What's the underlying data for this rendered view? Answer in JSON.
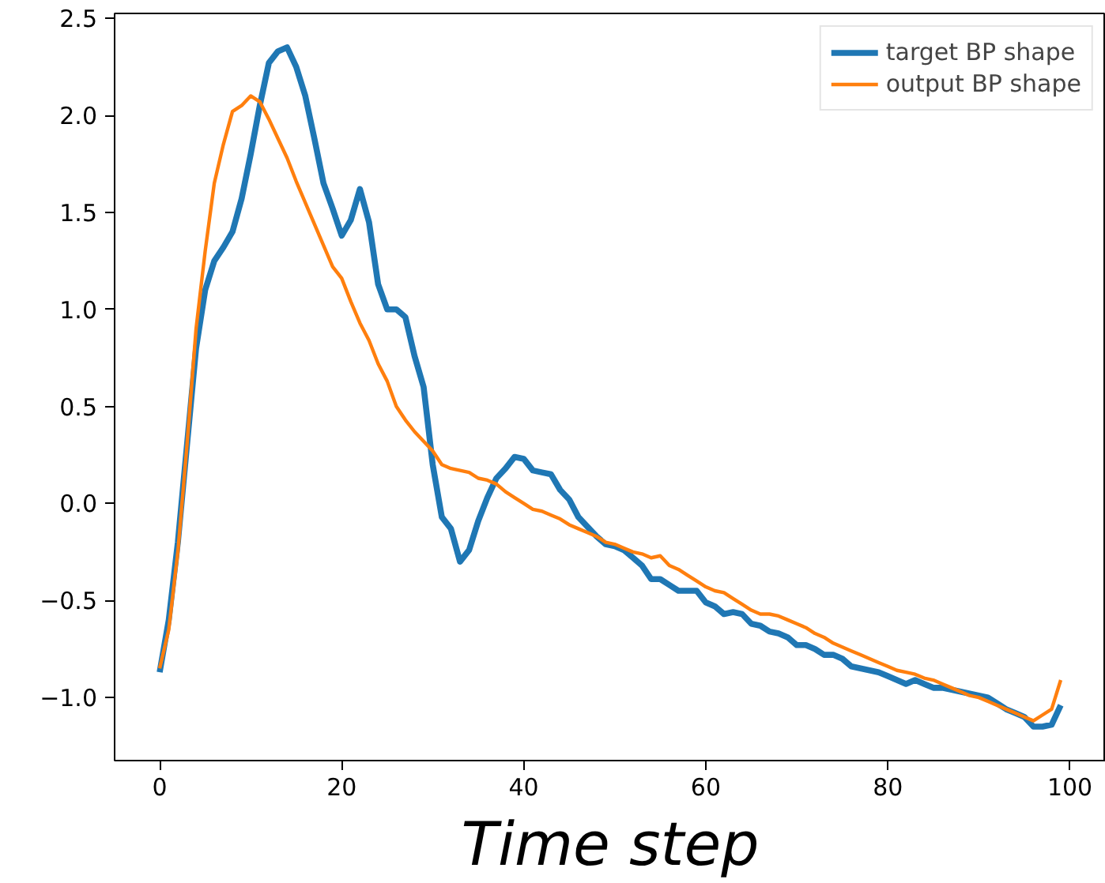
{
  "chart_data": {
    "type": "line",
    "xlabel": "Time step",
    "x": [
      0,
      1,
      2,
      3,
      4,
      5,
      6,
      7,
      8,
      9,
      10,
      11,
      12,
      13,
      14,
      15,
      16,
      17,
      18,
      19,
      20,
      21,
      22,
      23,
      24,
      25,
      26,
      27,
      28,
      29,
      30,
      31,
      32,
      33,
      34,
      35,
      36,
      37,
      38,
      39,
      40,
      41,
      42,
      43,
      44,
      45,
      46,
      47,
      48,
      49,
      50,
      51,
      52,
      53,
      54,
      55,
      56,
      57,
      58,
      59,
      60,
      61,
      62,
      63,
      64,
      65,
      66,
      67,
      68,
      69,
      70,
      71,
      72,
      73,
      74,
      75,
      76,
      77,
      78,
      79,
      80,
      81,
      82,
      83,
      84,
      85,
      86,
      87,
      88,
      89,
      90,
      91,
      92,
      93,
      94,
      95,
      96,
      97,
      98,
      99
    ],
    "series": [
      {
        "name": "target BP shape",
        "color": "#1f77b4",
        "values": [
          -0.87,
          -0.6,
          -0.2,
          0.3,
          0.8,
          1.1,
          1.25,
          1.32,
          1.4,
          1.57,
          1.8,
          2.05,
          2.27,
          2.33,
          2.35,
          2.25,
          2.1,
          1.88,
          1.65,
          1.52,
          1.38,
          1.46,
          1.62,
          1.45,
          1.13,
          1.0,
          1.0,
          0.96,
          0.76,
          0.6,
          0.2,
          -0.07,
          -0.13,
          -0.3,
          -0.24,
          -0.09,
          0.03,
          0.13,
          0.18,
          0.24,
          0.23,
          0.17,
          0.16,
          0.15,
          0.07,
          0.02,
          -0.07,
          -0.12,
          -0.17,
          -0.21,
          -0.22,
          -0.24,
          -0.28,
          -0.32,
          -0.39,
          -0.39,
          -0.42,
          -0.45,
          -0.45,
          -0.45,
          -0.51,
          -0.53,
          -0.57,
          -0.56,
          -0.57,
          -0.62,
          -0.63,
          -0.66,
          -0.67,
          -0.69,
          -0.73,
          -0.73,
          -0.75,
          -0.78,
          -0.78,
          -0.8,
          -0.84,
          -0.85,
          -0.86,
          -0.87,
          -0.89,
          -0.91,
          -0.93,
          -0.91,
          -0.93,
          -0.95,
          -0.95,
          -0.96,
          -0.97,
          -0.98,
          -0.99,
          -1.0,
          -1.03,
          -1.06,
          -1.08,
          -1.1,
          -1.15,
          -1.15,
          -1.14,
          -1.04
        ]
      },
      {
        "name": "output BP shape",
        "color": "#ff7f0e",
        "values": [
          -0.85,
          -0.65,
          -0.25,
          0.3,
          0.9,
          1.3,
          1.65,
          1.85,
          2.02,
          2.05,
          2.1,
          2.07,
          1.98,
          1.88,
          1.78,
          1.66,
          1.55,
          1.44,
          1.33,
          1.22,
          1.16,
          1.04,
          0.93,
          0.84,
          0.72,
          0.63,
          0.5,
          0.43,
          0.37,
          0.32,
          0.27,
          0.2,
          0.18,
          0.17,
          0.16,
          0.13,
          0.12,
          0.1,
          0.06,
          0.03,
          0.0,
          -0.03,
          -0.04,
          -0.06,
          -0.08,
          -0.11,
          -0.13,
          -0.15,
          -0.17,
          -0.2,
          -0.21,
          -0.23,
          -0.25,
          -0.26,
          -0.28,
          -0.27,
          -0.32,
          -0.34,
          -0.37,
          -0.4,
          -0.43,
          -0.45,
          -0.46,
          -0.49,
          -0.52,
          -0.55,
          -0.57,
          -0.57,
          -0.58,
          -0.6,
          -0.62,
          -0.64,
          -0.67,
          -0.69,
          -0.72,
          -0.74,
          -0.76,
          -0.78,
          -0.8,
          -0.82,
          -0.84,
          -0.86,
          -0.87,
          -0.88,
          -0.9,
          -0.91,
          -0.93,
          -0.95,
          -0.97,
          -0.99,
          -1.0,
          -1.02,
          -1.04,
          -1.06,
          -1.08,
          -1.1,
          -1.12,
          -1.09,
          -1.06,
          -0.91
        ]
      }
    ],
    "xlim": [
      -4.95,
      103.95
    ],
    "ylim": [
      -1.325,
      2.525
    ],
    "xticks": [
      0,
      20,
      40,
      60,
      80,
      100
    ],
    "yticks": [
      {
        "value": -1.0,
        "label": "−1.0"
      },
      {
        "value": -0.5,
        "label": "−0.5"
      },
      {
        "value": 0.0,
        "label": "0.0"
      },
      {
        "value": 0.5,
        "label": "0.5"
      },
      {
        "value": 1.0,
        "label": "1.0"
      },
      {
        "value": 1.5,
        "label": "1.5"
      },
      {
        "value": 2.0,
        "label": "2.0"
      },
      {
        "value": 2.5,
        "label": "2.5"
      }
    ],
    "grid": false,
    "legend": "top right",
    "line_style": "solid"
  }
}
